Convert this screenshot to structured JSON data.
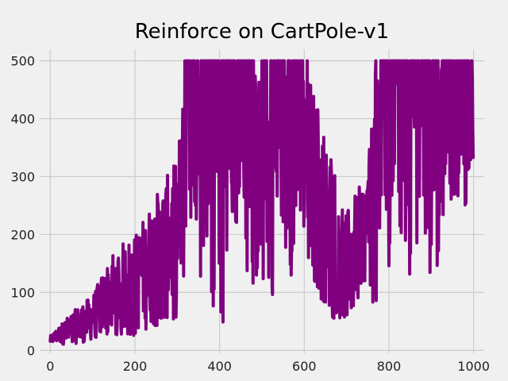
{
  "chart_data": {
    "type": "line",
    "title": "Reinforce on CartPole-v1",
    "xlabel": "",
    "ylabel": "",
    "xlim": [
      -25,
      1025
    ],
    "ylim": [
      -5,
      520
    ],
    "xticks": [
      0,
      200,
      400,
      600,
      800,
      1000
    ],
    "yticks": [
      0,
      100,
      200,
      300,
      400,
      500
    ],
    "grid": true,
    "legend": "none",
    "series": [
      {
        "color": "#800080",
        "x_start": 0,
        "x_end": 999,
        "approx_trend": [
          {
            "x": 0,
            "low": 10,
            "high": 25
          },
          {
            "x": 50,
            "low": 10,
            "high": 65
          },
          {
            "x": 100,
            "low": 15,
            "high": 95
          },
          {
            "x": 150,
            "low": 25,
            "high": 175
          },
          {
            "x": 200,
            "low": 25,
            "high": 200
          },
          {
            "x": 250,
            "low": 40,
            "high": 270
          },
          {
            "x": 300,
            "low": 50,
            "high": 330
          },
          {
            "x": 320,
            "low": 100,
            "high": 500
          },
          {
            "x": 360,
            "low": 120,
            "high": 500
          },
          {
            "x": 400,
            "low": 30,
            "high": 500
          },
          {
            "x": 450,
            "low": 140,
            "high": 500
          },
          {
            "x": 500,
            "low": 75,
            "high": 480
          },
          {
            "x": 550,
            "low": 100,
            "high": 500
          },
          {
            "x": 600,
            "low": 170,
            "high": 500
          },
          {
            "x": 650,
            "low": 65,
            "high": 390
          },
          {
            "x": 700,
            "low": 40,
            "high": 240
          },
          {
            "x": 750,
            "low": 130,
            "high": 310
          },
          {
            "x": 770,
            "low": 30,
            "high": 500
          },
          {
            "x": 800,
            "low": 140,
            "high": 500
          },
          {
            "x": 850,
            "low": 120,
            "high": 500
          },
          {
            "x": 900,
            "low": 100,
            "high": 500
          },
          {
            "x": 950,
            "low": 250,
            "high": 500
          },
          {
            "x": 999,
            "low": 240,
            "high": 500
          }
        ]
      }
    ]
  }
}
